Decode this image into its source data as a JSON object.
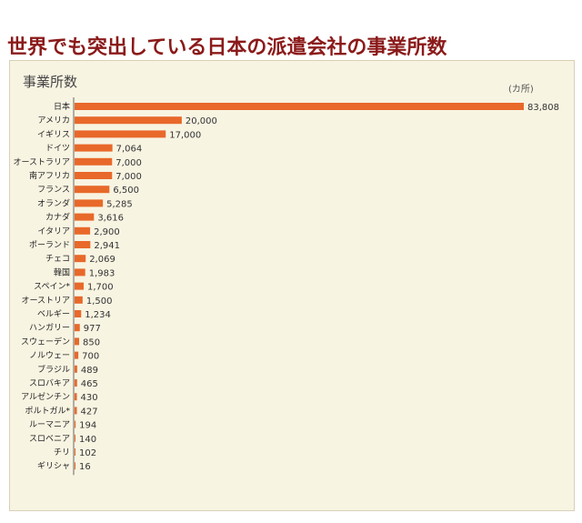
{
  "headline": "世界でも突出している日本の派遣会社の事業所数",
  "chart_data": {
    "type": "bar",
    "orientation": "horizontal",
    "title": "事業所数",
    "unit": "(カ所)",
    "bar_color": "#e8692a",
    "xlim": [
      0,
      83808
    ],
    "categories": [
      "日本",
      "アメリカ",
      "イギリス",
      "ドイツ",
      "オーストラリア",
      "南アフリカ",
      "フランス",
      "オランダ",
      "カナダ",
      "イタリア",
      "ポーランド",
      "チェコ",
      "韓国",
      "スペイン*",
      "オーストリア",
      "ベルギー",
      "ハンガリー",
      "スウェーデン",
      "ノルウェー",
      "ブラジル",
      "スロバキア",
      "アルゼンチン",
      "ポルトガル*",
      "ルーマニア",
      "スロベニア",
      "チリ",
      "ギリシャ"
    ],
    "values": [
      83808,
      20000,
      17000,
      7064,
      7000,
      7000,
      6500,
      5285,
      3616,
      2900,
      2941,
      2069,
      1983,
      1700,
      1500,
      1234,
      977,
      850,
      700,
      489,
      465,
      430,
      427,
      194,
      140,
      102,
      16
    ],
    "value_labels": [
      "83,808",
      "20,000",
      "17,000",
      "7,064",
      "7,000",
      "7,000",
      "6,500",
      "5,285",
      "3,616",
      "2,900",
      "2,941",
      "2,069",
      "1,983",
      "1,700",
      "1,500",
      "1,234",
      "977",
      "850",
      "700",
      "489",
      "465",
      "430",
      "427",
      "194",
      "140",
      "102",
      "16"
    ]
  }
}
